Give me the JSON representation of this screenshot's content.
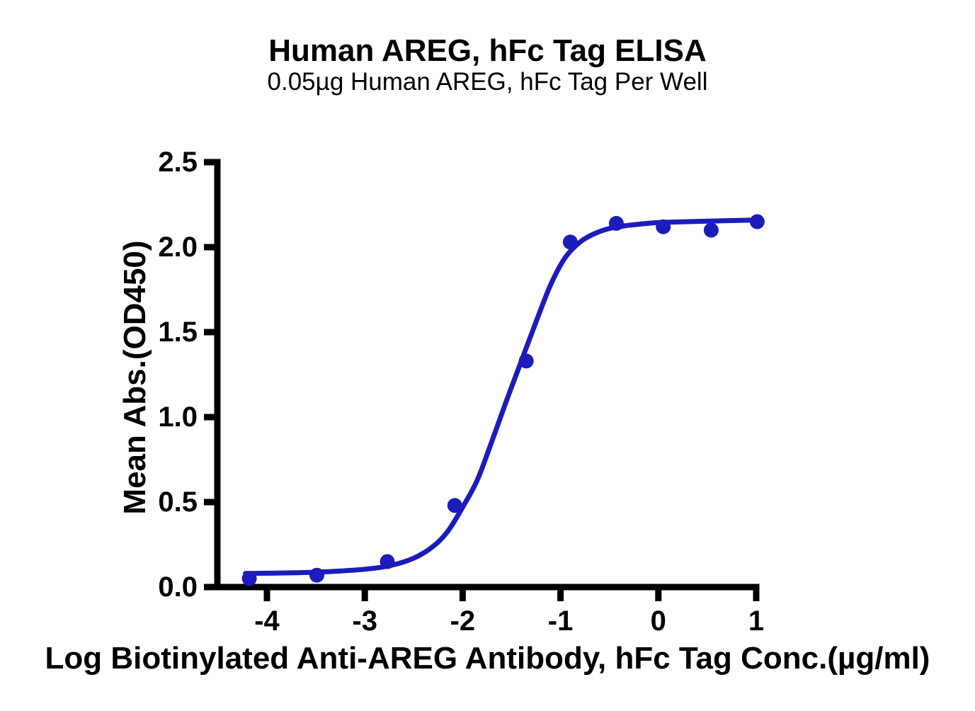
{
  "page": {
    "background": "#ffffff"
  },
  "chart_data": {
    "type": "scatter",
    "title": "Human AREG, hFc Tag ELISA",
    "subtitle": "0.05µg Human AREG, hFc Tag Per Well",
    "xlabel": "Log Biotinylated Anti-AREG Antibody, hFc Tag Conc.(µg/ml)",
    "ylabel": "Mean Abs.(OD450)",
    "xlim": [
      -4.54,
      1.03
    ],
    "ylim": [
      0.0,
      2.5
    ],
    "grid": false,
    "legend": "none",
    "x_ticks": [
      -4,
      -3,
      -2,
      -1,
      0,
      1
    ],
    "x_tick_labels": [
      "-4",
      "-3",
      "-2",
      "-1",
      "0",
      "1"
    ],
    "y_ticks": [
      0.0,
      0.5,
      1.0,
      1.5,
      2.0,
      2.5
    ],
    "y_tick_labels": [
      "0.0",
      "0.5",
      "1.0",
      "1.5",
      "2.0",
      "2.5"
    ],
    "axis_color": "#000000",
    "series": [
      {
        "name": "Human AREG, hFc Tag ELISA",
        "marker": "circle",
        "color": "#1c1cbc",
        "x": [
          -4.18,
          -3.49,
          -2.77,
          -2.08,
          -1.35,
          -0.9,
          -0.43,
          0.05,
          0.54,
          1.01
        ],
        "y": [
          0.05,
          0.07,
          0.15,
          0.48,
          1.33,
          2.03,
          2.14,
          2.12,
          2.1,
          2.15
        ]
      }
    ],
    "fit_curve": {
      "name": "4PL sigmoidal fit",
      "color": "#1c1cbc",
      "samples": [
        [
          -4.22,
          0.08
        ],
        [
          -3.9,
          0.082
        ],
        [
          -3.6,
          0.086
        ],
        [
          -3.3,
          0.093
        ],
        [
          -3.0,
          0.105
        ],
        [
          -2.75,
          0.125
        ],
        [
          -2.5,
          0.17
        ],
        [
          -2.3,
          0.24
        ],
        [
          -2.15,
          0.33
        ],
        [
          -2.0,
          0.47
        ],
        [
          -1.85,
          0.63
        ],
        [
          -1.7,
          0.86
        ],
        [
          -1.55,
          1.1
        ],
        [
          -1.4,
          1.33
        ],
        [
          -1.25,
          1.56
        ],
        [
          -1.1,
          1.78
        ],
        [
          -0.95,
          1.94
        ],
        [
          -0.8,
          2.03
        ],
        [
          -0.65,
          2.08
        ],
        [
          -0.5,
          2.11
        ],
        [
          -0.35,
          2.125
        ],
        [
          -0.2,
          2.135
        ],
        [
          0.0,
          2.145
        ],
        [
          0.3,
          2.15
        ],
        [
          0.65,
          2.155
        ],
        [
          1.01,
          2.16
        ]
      ]
    }
  }
}
